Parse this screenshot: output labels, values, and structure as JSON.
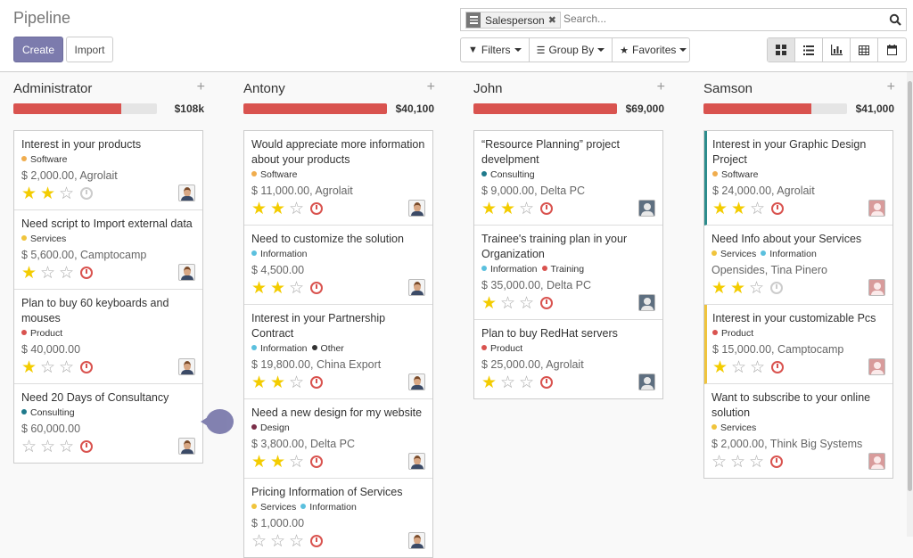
{
  "page": {
    "title": "Pipeline"
  },
  "buttons": {
    "create": "Create",
    "import": "Import"
  },
  "search": {
    "facet": "Salesperson",
    "placeholder": "Search..."
  },
  "filters": {
    "filters": "Filters",
    "group_by": "Group By",
    "favorites": "Favorites"
  },
  "views": [
    "kanban",
    "list",
    "graph",
    "pivot",
    "calendar"
  ],
  "tag_colors": {
    "Software": "#f0ad4e",
    "Services": "#f0c43c",
    "Product": "#d9534f",
    "Consulting": "#1f7a8c",
    "Information": "#5bc0de",
    "Other": "#333333",
    "Design": "#7a2e48",
    "Training": "#d9534f"
  },
  "columns": [
    {
      "name": "Administrator",
      "total": "$108k",
      "progress": 0.75,
      "cards": [
        {
          "title": "Interest in your products",
          "tags": [
            "Software"
          ],
          "amount": "$ 2,000.00, Agrolait",
          "stars": 2,
          "activity": "none",
          "avatar": "male"
        },
        {
          "title": "Need script to Import external data",
          "tags": [
            "Services"
          ],
          "amount": "$ 5,600.00, Camptocamp",
          "stars": 1,
          "activity": "overdue",
          "avatar": "male"
        },
        {
          "title": "Plan to buy 60 keyboards and mouses",
          "tags": [
            "Product"
          ],
          "amount": "$ 40,000.00",
          "stars": 1,
          "activity": "overdue",
          "avatar": "male"
        },
        {
          "title": "Need 20 Days of Consultancy",
          "tags": [
            "Consulting"
          ],
          "amount": "$ 60,000.00",
          "stars": 0,
          "activity": "overdue",
          "avatar": "male"
        }
      ]
    },
    {
      "name": "Antony",
      "total": "$40,100",
      "progress": 1.0,
      "cards": [
        {
          "title": "Would appreciate more information about your products",
          "tags": [
            "Software"
          ],
          "amount": "$ 11,000.00, Agrolait",
          "stars": 2,
          "activity": "overdue",
          "avatar": "male"
        },
        {
          "title": "Need to customize the solution",
          "tags": [
            "Information"
          ],
          "amount": "$ 4,500.00",
          "stars": 2,
          "activity": "overdue",
          "avatar": "male"
        },
        {
          "title": "Interest in your Partnership Contract",
          "tags": [
            "Information",
            "Other"
          ],
          "amount": "$ 19,800.00, China Export",
          "stars": 2,
          "activity": "overdue",
          "avatar": "male"
        },
        {
          "title": "Need a new design for my website",
          "tags": [
            "Design"
          ],
          "amount": "$ 3,800.00, Delta PC",
          "stars": 2,
          "activity": "overdue",
          "avatar": "male"
        },
        {
          "title": "Pricing Information of Services",
          "tags": [
            "Services",
            "Information"
          ],
          "amount": "$ 1,000.00",
          "stars": 0,
          "activity": "overdue",
          "avatar": "male"
        }
      ]
    },
    {
      "name": "John",
      "total": "$69,000",
      "progress": 1.0,
      "cards": [
        {
          "title": "“Resource Planning” project develpment",
          "tags": [
            "Consulting"
          ],
          "amount": "$ 9,000.00, Delta PC",
          "stars": 2,
          "activity": "overdue",
          "avatar": "grey"
        },
        {
          "title": "Trainee's training plan in your Organization",
          "tags": [
            "Information",
            "Training"
          ],
          "amount": "$ 35,000.00, Delta PC",
          "stars": 1,
          "activity": "overdue",
          "avatar": "grey"
        },
        {
          "title": "Plan to buy RedHat servers",
          "tags": [
            "Product"
          ],
          "amount": "$ 25,000.00, Agrolait",
          "stars": 1,
          "activity": "overdue",
          "avatar": "grey"
        }
      ]
    },
    {
      "name": "Samson",
      "total": "$41,000",
      "progress": 0.75,
      "cards": [
        {
          "title": "Interest in your Graphic Design Project",
          "tags": [
            "Software"
          ],
          "amount": "$ 24,000.00, Agrolait",
          "stars": 2,
          "activity": "overdue",
          "avatar": "pink",
          "border": "teal"
        },
        {
          "title": "Need Info about your Services",
          "tags": [
            "Services",
            "Information"
          ],
          "amount": "Opensides, Tina Pinero",
          "stars": 2,
          "activity": "none",
          "avatar": "pink"
        },
        {
          "title": "Interest in your customizable Pcs",
          "tags": [
            "Product"
          ],
          "amount": "$ 15,000.00, Camptocamp",
          "stars": 1,
          "activity": "overdue",
          "avatar": "pink",
          "border": "yellow"
        },
        {
          "title": "Want to subscribe to your online solution",
          "tags": [
            "Services"
          ],
          "amount": "$ 2,000.00, Think Big Systems",
          "stars": 0,
          "activity": "overdue",
          "avatar": "pink"
        }
      ]
    }
  ]
}
